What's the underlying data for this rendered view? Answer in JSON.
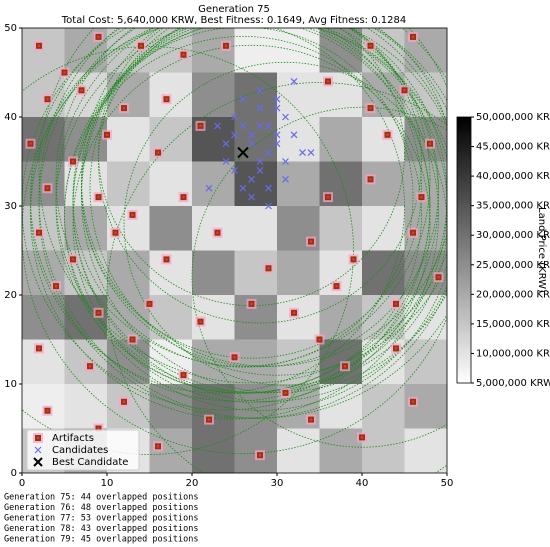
{
  "chart_data": {
    "type": "scatter",
    "title": "Generation 75",
    "subtitle": "Total Cost: 5,640,000 KRW, Best Fitness: 0.1649, Avg Fitness: 0.1284",
    "xlim": [
      0,
      50
    ],
    "ylim": [
      0,
      50
    ],
    "xticks": [
      0,
      10,
      20,
      30,
      40,
      50
    ],
    "yticks": [
      0,
      10,
      20,
      30,
      40,
      50
    ],
    "heatmap": {
      "cell": 5,
      "rows_top_to_bottom": [
        [
          15000000,
          20000000,
          15000000,
          15000000,
          20000000,
          8000000,
          8000000,
          25000000,
          15000000,
          20000000
        ],
        [
          15000000,
          12000000,
          20000000,
          10000000,
          25000000,
          30000000,
          10000000,
          10000000,
          20000000,
          15000000
        ],
        [
          30000000,
          25000000,
          10000000,
          15000000,
          35000000,
          30000000,
          10000000,
          20000000,
          10000000,
          25000000
        ],
        [
          25000000,
          10000000,
          15000000,
          10000000,
          20000000,
          35000000,
          20000000,
          30000000,
          20000000,
          20000000
        ],
        [
          15000000,
          20000000,
          10000000,
          25000000,
          10000000,
          10000000,
          25000000,
          15000000,
          10000000,
          20000000
        ],
        [
          20000000,
          15000000,
          20000000,
          10000000,
          25000000,
          15000000,
          20000000,
          10000000,
          30000000,
          25000000
        ],
        [
          25000000,
          30000000,
          20000000,
          15000000,
          10000000,
          25000000,
          10000000,
          20000000,
          15000000,
          10000000
        ],
        [
          10000000,
          15000000,
          25000000,
          8000000,
          20000000,
          20000000,
          15000000,
          30000000,
          10000000,
          15000000
        ],
        [
          8000000,
          10000000,
          15000000,
          25000000,
          30000000,
          25000000,
          20000000,
          10000000,
          15000000,
          20000000
        ],
        [
          15000000,
          20000000,
          10000000,
          20000000,
          30000000,
          25000000,
          10000000,
          20000000,
          15000000,
          10000000
        ]
      ]
    },
    "colorbar": {
      "label": "Land Price (KRW)",
      "lim": [
        5000000,
        50000000
      ],
      "ticks": [
        {
          "value": 5000000,
          "label": "5,000,000 KRW"
        },
        {
          "value": 10000000,
          "label": "10,000,000 KRW"
        },
        {
          "value": 15000000,
          "label": "15,000,000 KRW"
        },
        {
          "value": 20000000,
          "label": "20,000,000 KRW"
        },
        {
          "value": 25000000,
          "label": "25,000,000 KRW"
        },
        {
          "value": 30000000,
          "label": "30,000,000 KRW"
        },
        {
          "value": 35000000,
          "label": "35,000,000 KRW"
        },
        {
          "value": 40000000,
          "label": "40,000,000 KRW"
        },
        {
          "value": 45000000,
          "label": "45,000,000 KRW"
        },
        {
          "value": 50000000,
          "label": "50,000,000 KRW"
        }
      ]
    },
    "circles": {
      "color": "#1a8a1a",
      "x": [
        26,
        27,
        28,
        25,
        29,
        27,
        26,
        28,
        30,
        24,
        27,
        28,
        26,
        29,
        27,
        25,
        28,
        26,
        27,
        30,
        31,
        23,
        35,
        40,
        15,
        27,
        28,
        26
      ],
      "y": [
        30,
        31,
        32,
        29,
        33,
        30,
        31,
        29,
        32,
        30,
        28,
        31,
        33,
        30,
        32,
        31,
        30,
        29,
        34,
        31,
        28,
        30,
        20,
        22,
        25,
        36,
        35,
        27
      ],
      "r": [
        22,
        23,
        21,
        24,
        22,
        25,
        20,
        23,
        22,
        24,
        21,
        26,
        22,
        23,
        20,
        24,
        22,
        21,
        25,
        23,
        19,
        22,
        25,
        20,
        24,
        18,
        19,
        26
      ]
    },
    "series": [
      {
        "name": "Artifacts",
        "color": "#8b3a10",
        "marker": "square",
        "x": [
          2,
          5,
          9,
          14,
          19,
          24,
          41,
          46,
          3,
          7,
          12,
          17,
          36,
          41,
          45,
          1,
          6,
          10,
          16,
          21,
          43,
          48,
          3,
          9,
          13,
          19,
          36,
          41,
          47,
          2,
          6,
          11,
          17,
          23,
          29,
          34,
          39,
          46,
          4,
          9,
          15,
          21,
          27,
          32,
          37,
          44,
          49,
          2,
          8,
          13,
          19,
          25,
          31,
          38,
          44,
          3,
          9,
          16,
          22,
          28,
          34,
          40,
          46,
          12,
          35
        ],
        "y": [
          48,
          45,
          49,
          48,
          47,
          48,
          48,
          49,
          42,
          43,
          41,
          42,
          44,
          41,
          43,
          37,
          35,
          38,
          36,
          39,
          38,
          37,
          32,
          31,
          29,
          31,
          31,
          33,
          31,
          27,
          24,
          27,
          24,
          27,
          23,
          26,
          24,
          27,
          21,
          18,
          19,
          17,
          19,
          18,
          21,
          19,
          22,
          14,
          12,
          15,
          11,
          13,
          9,
          12,
          14,
          7,
          5,
          3,
          6,
          2,
          6,
          4,
          8,
          8,
          15
        ]
      },
      {
        "name": "Candidates",
        "color": "#6a6ae8",
        "marker": "x",
        "x": [
          25,
          26,
          27,
          28,
          29,
          30,
          31,
          24,
          26,
          27,
          28,
          29,
          30,
          32,
          25,
          27,
          28,
          29,
          31,
          33,
          23,
          26,
          28,
          30,
          24,
          27,
          29,
          31,
          22,
          26,
          28,
          32,
          25,
          30,
          34
        ],
        "y": [
          40,
          39,
          38,
          41,
          39,
          38,
          40,
          37,
          36,
          37,
          35,
          36,
          37,
          38,
          34,
          33,
          34,
          32,
          35,
          36,
          39,
          42,
          43,
          42,
          35,
          31,
          30,
          33,
          32,
          32,
          39,
          44,
          38,
          41,
          36
        ]
      },
      {
        "name": "Best Candidate",
        "color": "#000000",
        "marker": "bigx",
        "x": [
          26
        ],
        "y": [
          36
        ]
      }
    ],
    "log": [
      "Generation 75: 44 overlapped positions",
      "Generation 76: 48 overlapped positions",
      "Generation 77: 53 overlapped positions",
      "Generation 78: 43 overlapped positions",
      "Generation 79: 45 overlapped positions"
    ]
  }
}
